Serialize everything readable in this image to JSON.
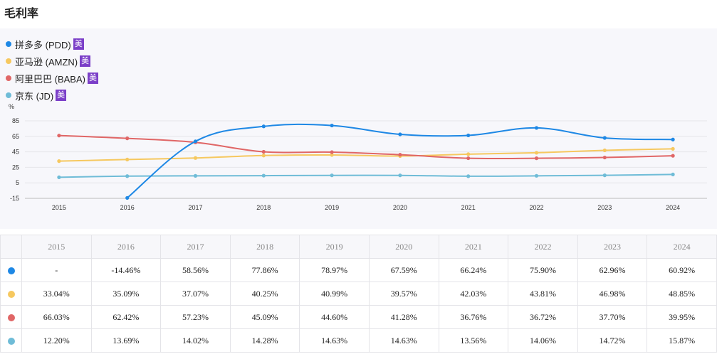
{
  "page_title": "毛利率",
  "legend": [
    {
      "name": "拼多多 (PDD)",
      "badge": "美",
      "color": "#1e88e5"
    },
    {
      "name": "亚马逊 (AMZN)",
      "badge": "美",
      "color": "#f6c85f"
    },
    {
      "name": "阿里巴巴 (BABA)",
      "badge": "美",
      "color": "#e06666"
    },
    {
      "name": "京东 (JD)",
      "badge": "美",
      "color": "#6fbcd7"
    }
  ],
  "chart_data": {
    "type": "line",
    "ylabel": "%",
    "ylim": [
      -15,
      85
    ],
    "yticks": [
      85,
      65,
      45,
      25,
      5,
      -15
    ],
    "categories": [
      "2015",
      "2016",
      "2017",
      "2018",
      "2019",
      "2020",
      "2021",
      "2022",
      "2023",
      "2024"
    ],
    "series": [
      {
        "name": "拼多多 (PDD)",
        "color": "#1e88e5",
        "values": [
          null,
          -14.46,
          58.56,
          77.86,
          78.97,
          67.59,
          66.24,
          75.9,
          62.96,
          60.92
        ]
      },
      {
        "name": "亚马逊 (AMZN)",
        "color": "#f6c85f",
        "values": [
          33.04,
          35.09,
          37.07,
          40.25,
          40.99,
          39.57,
          42.03,
          43.81,
          46.98,
          48.85
        ]
      },
      {
        "name": "阿里巴巴 (BABA)",
        "color": "#e06666",
        "values": [
          66.03,
          62.42,
          57.23,
          45.09,
          44.6,
          41.28,
          36.76,
          36.72,
          37.7,
          39.95
        ]
      },
      {
        "name": "京东 (JD)",
        "color": "#6fbcd7",
        "values": [
          12.2,
          13.69,
          14.02,
          14.28,
          14.63,
          14.63,
          13.56,
          14.06,
          14.72,
          15.87
        ]
      }
    ]
  },
  "table": {
    "header": [
      "2015",
      "2016",
      "2017",
      "2018",
      "2019",
      "2020",
      "2021",
      "2022",
      "2023",
      "2024"
    ],
    "rows": [
      {
        "color": "#1e88e5",
        "cells": [
          "-",
          "-14.46%",
          "58.56%",
          "77.86%",
          "78.97%",
          "67.59%",
          "66.24%",
          "75.90%",
          "62.96%",
          "60.92%"
        ]
      },
      {
        "color": "#f6c85f",
        "cells": [
          "33.04%",
          "35.09%",
          "37.07%",
          "40.25%",
          "40.99%",
          "39.57%",
          "42.03%",
          "43.81%",
          "46.98%",
          "48.85%"
        ]
      },
      {
        "color": "#e06666",
        "cells": [
          "66.03%",
          "62.42%",
          "57.23%",
          "45.09%",
          "44.60%",
          "41.28%",
          "36.76%",
          "36.72%",
          "37.70%",
          "39.95%"
        ]
      },
      {
        "color": "#6fbcd7",
        "cells": [
          "12.20%",
          "13.69%",
          "14.02%",
          "14.28%",
          "14.63%",
          "14.63%",
          "13.56%",
          "14.06%",
          "14.72%",
          "15.87%"
        ]
      }
    ]
  }
}
